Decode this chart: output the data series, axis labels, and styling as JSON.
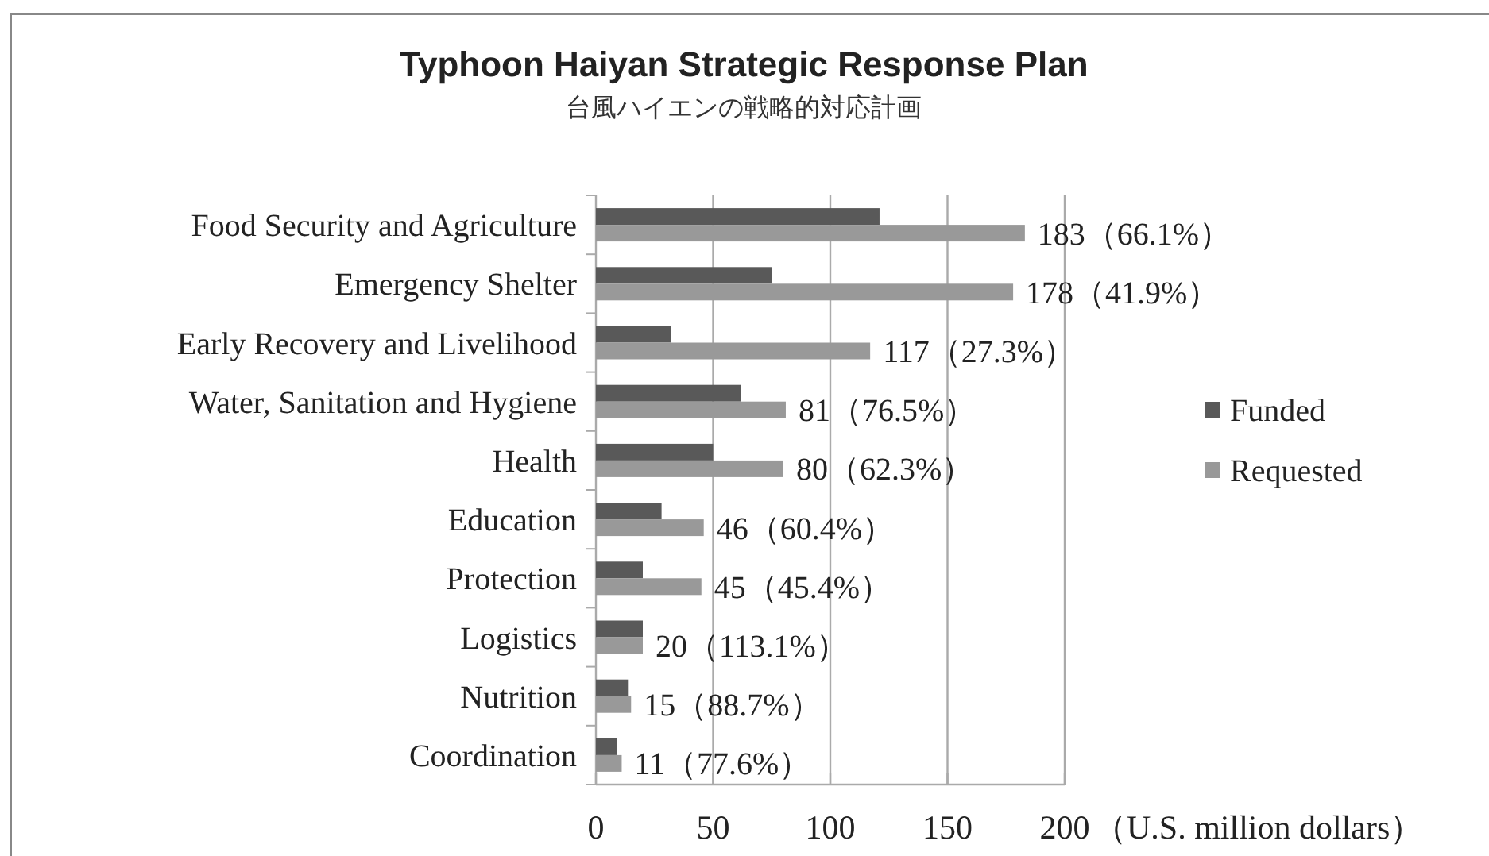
{
  "chart_data": {
    "type": "bar",
    "orientation": "horizontal",
    "title": "Typhoon Haiyan Strategic Response Plan",
    "subtitle": "台風ハイエンの戦略的対応計画",
    "xlabel": "（U.S. million dollars）",
    "categories": [
      "Food Security and Agriculture",
      "Emergency Shelter",
      "Early Recovery and Livelihood",
      "Water, Sanitation and Hygiene",
      "Health",
      "Education",
      "Protection",
      "Logistics",
      "Nutrition",
      "Coordination"
    ],
    "series": [
      {
        "name": "Funded",
        "color": "#595959",
        "values": [
          121,
          75,
          32,
          62,
          50,
          28,
          20,
          20,
          14,
          9
        ]
      },
      {
        "name": "Requested",
        "color": "#999999",
        "values": [
          183,
          178,
          117,
          81,
          80,
          46,
          45,
          20,
          15,
          11
        ],
        "value_labels": [
          "183（66.1%）",
          "178（41.9%）",
          "117（27.3%）",
          "81（76.5%）",
          "80（62.3%）",
          "46（60.4%）",
          "45（45.4%）",
          "20（113.1%）",
          "15（88.7%）",
          "11（77.6%）"
        ]
      }
    ],
    "xlim": [
      0,
      200
    ],
    "xticks": [
      0,
      50,
      100,
      150,
      200
    ],
    "grid": "x",
    "legend": "right"
  }
}
